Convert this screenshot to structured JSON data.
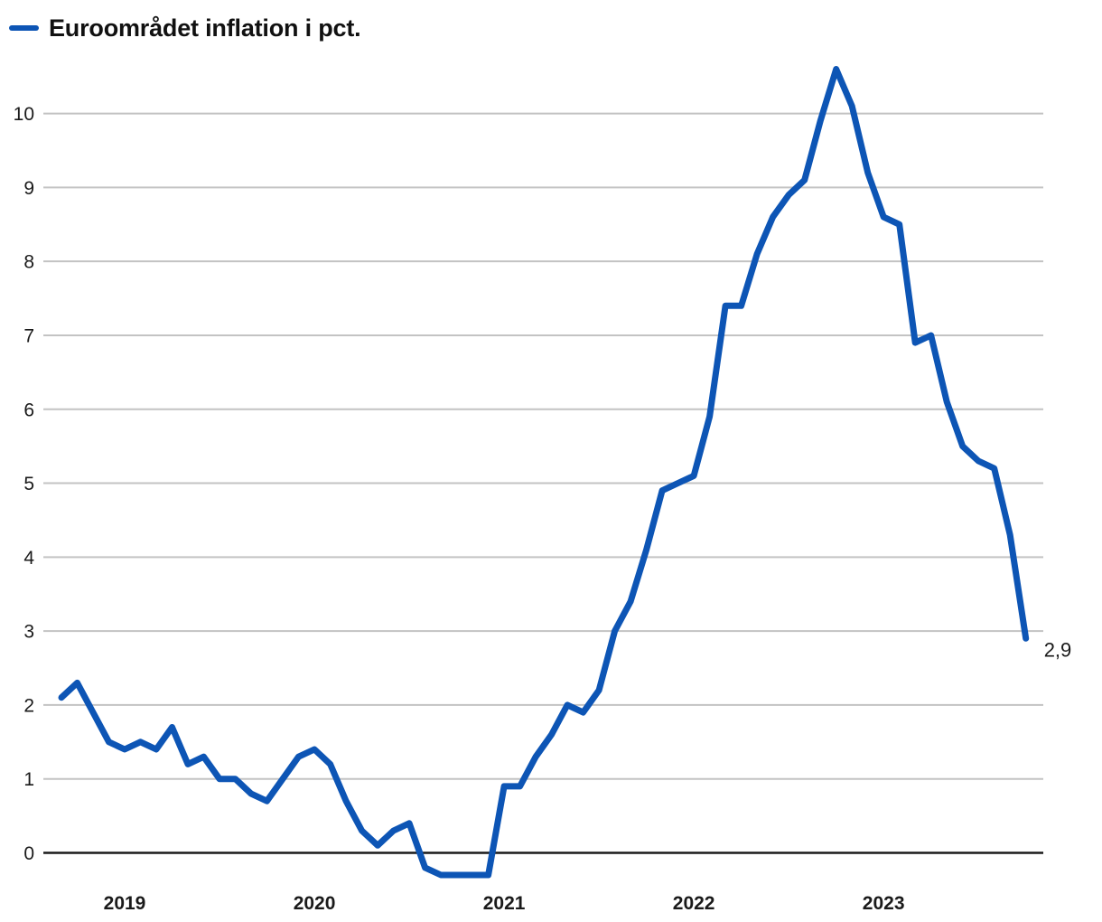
{
  "legend": {
    "label": "Euroområdet inflation i pct."
  },
  "colors": {
    "line": "#0d55b5",
    "grid": "#c3c3c3",
    "zero_axis": "#1a1a1a",
    "text": "#1a1a1a",
    "title_text": "#111111",
    "background": "#ffffff"
  },
  "chart_data": {
    "type": "line",
    "title": "Euroområdet inflation i pct.",
    "xlabel": "",
    "ylabel": "",
    "unit": "pct.",
    "legend_position": "top-left",
    "grid": "horizontal gray lines, black zero line",
    "ylim": [
      -0.55,
      10.8
    ],
    "y_ticks": [
      0,
      1,
      2,
      3,
      4,
      5,
      6,
      7,
      8,
      9,
      10
    ],
    "x_tick_labels": [
      "2019",
      "2020",
      "2021",
      "2022",
      "2023"
    ],
    "last_value_label": "2,9",
    "x": [
      "2018-09",
      "2018-10",
      "2018-11",
      "2018-12",
      "2019-01",
      "2019-02",
      "2019-03",
      "2019-04",
      "2019-05",
      "2019-06",
      "2019-07",
      "2019-08",
      "2019-09",
      "2019-10",
      "2019-11",
      "2019-12",
      "2020-01",
      "2020-02",
      "2020-03",
      "2020-04",
      "2020-05",
      "2020-06",
      "2020-07",
      "2020-08",
      "2020-09",
      "2020-10",
      "2020-11",
      "2020-12",
      "2021-01",
      "2021-02",
      "2021-03",
      "2021-04",
      "2021-05",
      "2021-06",
      "2021-07",
      "2021-08",
      "2021-09",
      "2021-10",
      "2021-11",
      "2021-12",
      "2022-01",
      "2022-02",
      "2022-03",
      "2022-04",
      "2022-05",
      "2022-06",
      "2022-07",
      "2022-08",
      "2022-09",
      "2022-10",
      "2022-11",
      "2022-12",
      "2023-01",
      "2023-02",
      "2023-03",
      "2023-04",
      "2023-05",
      "2023-06",
      "2023-07",
      "2023-08",
      "2023-09",
      "2023-10"
    ],
    "values": [
      2.1,
      2.3,
      1.9,
      1.5,
      1.4,
      1.5,
      1.4,
      1.7,
      1.2,
      1.3,
      1.0,
      1.0,
      0.8,
      0.7,
      1.0,
      1.3,
      1.4,
      1.2,
      0.7,
      0.3,
      0.1,
      0.3,
      0.4,
      -0.2,
      -0.3,
      -0.3,
      -0.3,
      -0.3,
      0.9,
      0.9,
      1.3,
      1.6,
      2.0,
      1.9,
      2.2,
      3.0,
      3.4,
      4.1,
      4.9,
      5.0,
      5.1,
      5.9,
      7.4,
      7.4,
      8.1,
      8.6,
      8.9,
      9.1,
      9.9,
      10.6,
      10.1,
      9.2,
      8.6,
      8.5,
      6.9,
      7.0,
      6.1,
      5.5,
      5.3,
      5.2,
      4.3,
      2.9
    ]
  }
}
